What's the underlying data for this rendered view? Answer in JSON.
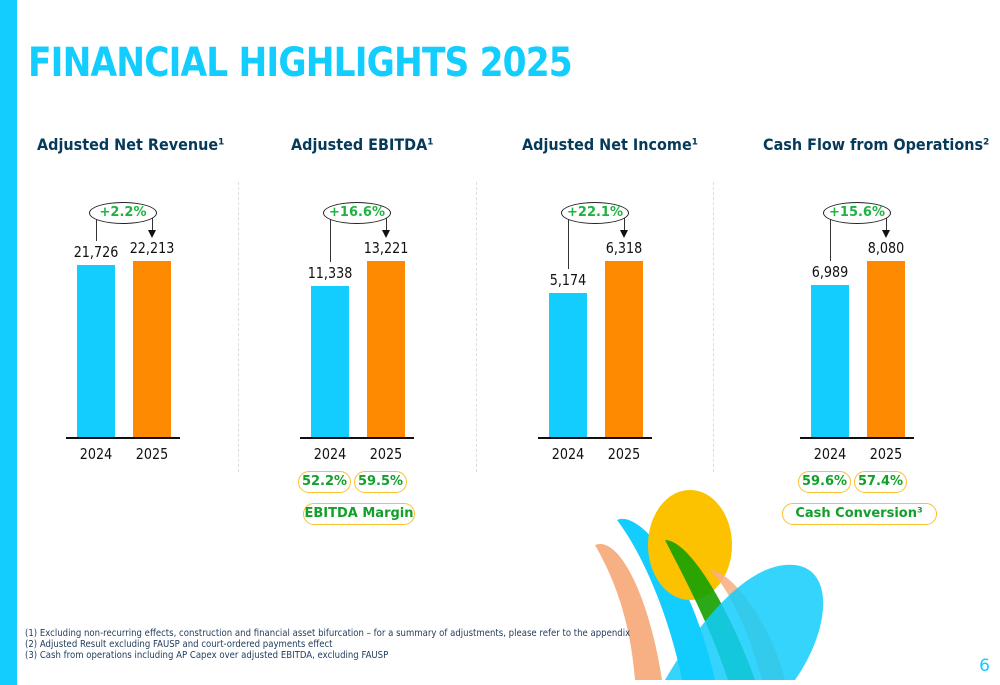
{
  "title": "FINANCIAL HIGHLIGHTS 2025",
  "page_number": "6",
  "colors": {
    "y2024": "#12cdfd",
    "y2025": "#fd8a00",
    "growth": "#1db341",
    "pill_border": "#fbc02d"
  },
  "chart_data": [
    {
      "type": "bar",
      "title": "Adjusted Net Revenue¹",
      "categories": [
        "2024",
        "2025"
      ],
      "values": [
        21726,
        22213
      ],
      "labels": [
        "21,726",
        "22,213"
      ],
      "growth": "+2.2%",
      "pills": [],
      "pill_label": ""
    },
    {
      "type": "bar",
      "title": "Adjusted EBITDA¹",
      "categories": [
        "2024",
        "2025"
      ],
      "values": [
        11338,
        13221
      ],
      "labels": [
        "11,338",
        "13,221"
      ],
      "growth": "+16.6%",
      "pills": [
        "52.2%",
        "59.5%"
      ],
      "pill_label": "EBITDA Margin"
    },
    {
      "type": "bar",
      "title": "Adjusted Net Income¹",
      "categories": [
        "2024",
        "2025"
      ],
      "values": [
        5174,
        6318
      ],
      "labels": [
        "5,174",
        "6,318"
      ],
      "growth": "+22.1%",
      "pills": [],
      "pill_label": ""
    },
    {
      "type": "bar",
      "title": "Cash Flow from Operations²",
      "categories": [
        "2024",
        "2025"
      ],
      "values": [
        6989,
        8080
      ],
      "labels": [
        "6,989",
        "8,080"
      ],
      "growth": "+15.6%",
      "pills": [
        "59.6%",
        "57.4%"
      ],
      "pill_label": "Cash Conversion³"
    }
  ],
  "footnotes": [
    "(1)   Excluding non-recurring effects, construction and financial asset bifurcation – for a summary of adjustments, please refer to the appendix",
    "(2)   Adjusted Result excluding FAUSP and court-ordered payments effect",
    "(3)   Cash from operations including AP Capex over adjusted EBITDA, excluding FAUSP"
  ]
}
